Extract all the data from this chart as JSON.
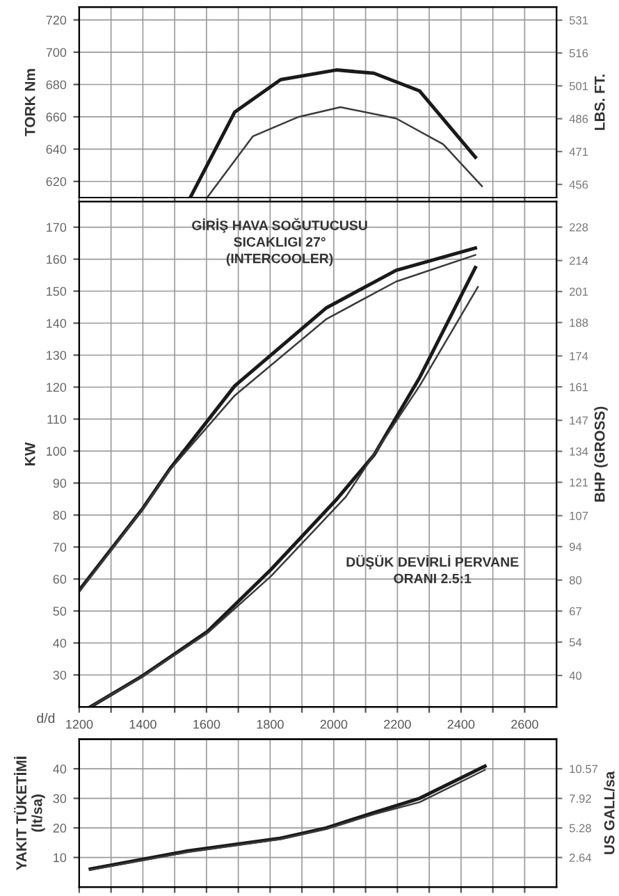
{
  "chart_data": [
    {
      "type": "line",
      "ylabel": "TORK Nm",
      "y2label": "LBS. FT.",
      "xlim": [
        1200,
        2700
      ],
      "xticks": [
        1200,
        {
          "value": 1300,
          "label": null
        },
        1400,
        {
          "value": 1500,
          "label": null
        },
        1600,
        {
          "value": 1700,
          "label": null
        },
        1800,
        {
          "value": 1900,
          "label": null
        },
        2000,
        {
          "value": 2100,
          "label": null
        },
        2200,
        {
          "value": 2300,
          "label": null
        },
        2400,
        {
          "value": 2500,
          "label": null
        },
        2600
      ],
      "ylim": [
        610,
        728
      ],
      "yticks": [
        620,
        640,
        660,
        680,
        700,
        720
      ],
      "y2lim": [
        450,
        537
      ],
      "y2ticks": [
        456,
        471,
        486,
        501,
        516,
        531
      ],
      "grid": true,
      "legend": false,
      "tick_labels": "y",
      "series": [
        {
          "color": "#1a1a1a",
          "x": [
            1549,
            1689,
            1833,
            2008,
            2126,
            2270,
            2445
          ],
          "values": [
            610,
            663,
            683,
            689,
            687,
            676,
            635
          ]
        },
        {
          "color": "#3a3a3a",
          "x": [
            1602,
            1746,
            1890,
            2021,
            2196,
            2344,
            2466
          ],
          "values": [
            610,
            648,
            660,
            666,
            659,
            643,
            617
          ]
        }
      ]
    },
    {
      "type": "line",
      "ylabel": "KW",
      "y2label": "BHP (GROSS)",
      "xlabel": "d/d",
      "xlim": [
        1200,
        2700
      ],
      "xticks": [
        1200,
        {
          "value": 1300,
          "label": null
        },
        1400,
        {
          "value": 1500,
          "label": null
        },
        1600,
        {
          "value": 1700,
          "label": null
        },
        1800,
        {
          "value": 1900,
          "label": null
        },
        2000,
        {
          "value": 2100,
          "label": null
        },
        2200,
        {
          "value": 2300,
          "label": null
        },
        2400,
        {
          "value": 2500,
          "label": null
        },
        2600
      ],
      "ylim": [
        20,
        178
      ],
      "yticks": [
        30,
        40,
        50,
        60,
        70,
        80,
        90,
        100,
        110,
        120,
        130,
        140,
        150,
        160,
        170
      ],
      "y2lim": [
        26.8,
        238.7
      ],
      "y2ticks": [
        40,
        54,
        67,
        80,
        94,
        107,
        121,
        134,
        147,
        161,
        174,
        188,
        201,
        214,
        228
      ],
      "grid": true,
      "legend": false,
      "annotations": [
        "GİRİŞ HAVA SOĞUTUCUSU\nSICAKLIGI 27°\n(INTERCOOLER)",
        "DÜŞÜK DEVİRLİ PERVANE\nORANI 2.5:1"
      ],
      "series": [
        {
          "color": "#1a1a1a",
          "x": [
            1200,
            1397,
            1484,
            1689,
            1977,
            2196,
            2445
          ],
          "values": [
            56.5,
            81.7,
            94.3,
            120.4,
            144.8,
            156.5,
            163.5
          ]
        },
        {
          "color": "#3a3a3a",
          "x": [
            1200,
            1397,
            1484,
            1689,
            1977,
            2196,
            2445
          ],
          "values": [
            56,
            81.5,
            94,
            117.4,
            141.3,
            153,
            161.3
          ]
        },
        {
          "color": "#1a1a1a",
          "x": [
            1235,
            1397,
            1602,
            1803,
            2008,
            2126,
            2270,
            2445
          ],
          "values": [
            20,
            29.6,
            43.5,
            63,
            84.8,
            98.7,
            123,
            157.4
          ]
        },
        {
          "color": "#3a3a3a",
          "x": [
            1235,
            1397,
            1602,
            1803,
            2038,
            2270,
            2453
          ],
          "values": [
            20,
            29.4,
            43,
            60.9,
            85.7,
            120.4,
            151.3
          ]
        }
      ]
    },
    {
      "type": "line",
      "ylabel": "YAKIT TÜKETİMİ\n(lt/sa)",
      "y2label": "US GALL/sa",
      "xlim": [
        1200,
        2700
      ],
      "xticks": [
        1200,
        {
          "value": 1300,
          "label": null
        },
        1400,
        {
          "value": 1500,
          "label": null
        },
        1600,
        {
          "value": 1700,
          "label": null
        },
        1800,
        {
          "value": 1900,
          "label": null
        },
        2000,
        {
          "value": 2100,
          "label": null
        },
        2200,
        {
          "value": 2300,
          "label": null
        },
        2400,
        {
          "value": 2500,
          "label": null
        },
        2600
      ],
      "ylim": [
        0,
        50
      ],
      "yticks": [
        10,
        20,
        30,
        40
      ],
      "y2lim": [
        0,
        13.21
      ],
      "y2ticks": [
        2.64,
        5.28,
        7.92,
        10.57
      ],
      "grid": true,
      "legend": false,
      "tick_labels": "y",
      "series": [
        {
          "color": "#1a1a1a",
          "x": [
            1235,
            1541,
            1833,
            1977,
            2126,
            2270,
            2475
          ],
          "values": [
            6.1,
            12.2,
            16.5,
            20,
            25.2,
            30,
            40.9
          ]
        },
        {
          "color": "#3a3a3a",
          "x": [
            1235,
            1541,
            1833,
            1977,
            2126,
            2270,
            2475
          ],
          "values": [
            5.8,
            11.8,
            16.2,
            19.6,
            24.6,
            28.7,
            39.6
          ]
        }
      ]
    }
  ]
}
